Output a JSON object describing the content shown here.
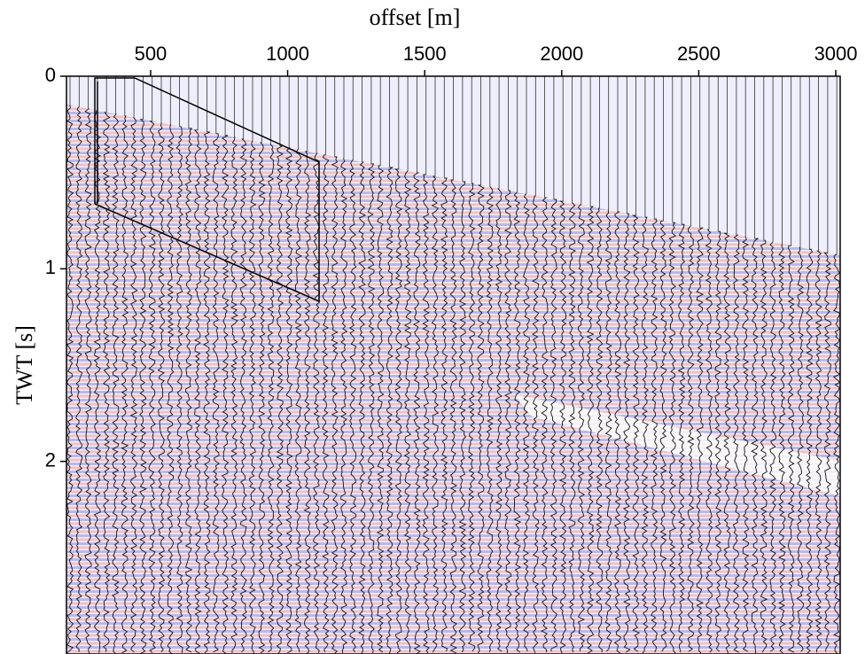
{
  "chart_data": {
    "type": "seismic-gather",
    "xlabel": "offset [m]",
    "ylabel": "TWT [s]",
    "xlim": [
      193,
      3016
    ],
    "xticks": [
      500,
      1000,
      1500,
      2000,
      2500,
      3000
    ],
    "ylim": [
      0,
      3
    ],
    "yticks": [
      0,
      1,
      2
    ]
  }
}
